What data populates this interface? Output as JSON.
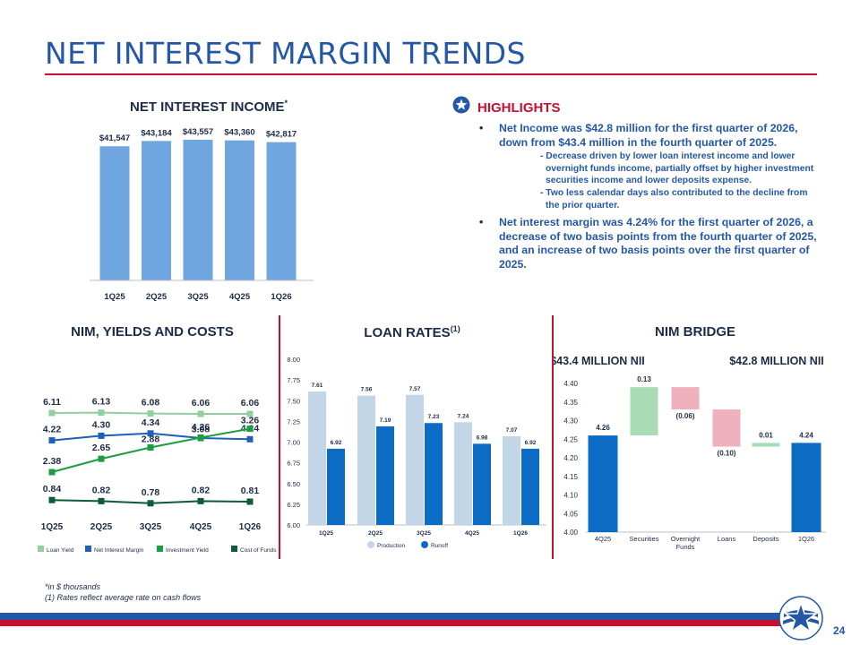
{
  "page": {
    "title": "NET INTEREST MARGIN TRENDS",
    "number": "24"
  },
  "colors": {
    "brand_blue": "#2557a7",
    "brand_red": "#c8102e",
    "light_blue": "#c2d6e8",
    "dark_blue": "#0c6cc4",
    "loan_yield_green": "#8fd19e",
    "nim_blue": "#1f5fb8",
    "investment_green": "#1a9e3f",
    "cost_funds_green": "#0e5a3a"
  },
  "nii_chart": {
    "title": "NET INTEREST INCOME",
    "title_mark": "*",
    "chart_data": {
      "type": "bar",
      "categories": [
        "1Q25",
        "2Q25",
        "3Q25",
        "4Q25",
        "1Q26"
      ],
      "values": [
        41547,
        43184,
        43557,
        43360,
        42817
      ],
      "labels": [
        "$41,547",
        "$43,184",
        "$43,557",
        "$43,360",
        "$42,817"
      ],
      "color": "#6fa6df"
    }
  },
  "highlights": {
    "title": "HIGHLIGHTS",
    "bullet_1": "Net Income was $42.8 million for the first quarter of 2026, down from $43.4 million in the fourth quarter of 2025.",
    "sub_1": "- Decrease driven by lower loan interest income and lower overnight funds income, partially offset by higher investment securities income and lower deposits expense.",
    "sub_2": "- Two less calendar days also contributed to the decline from the prior quarter.",
    "bullet_2": "Net interest margin was 4.24% for the first quarter of 2026, a decrease of two basis points from the fourth quarter of 2025, and an increase of two basis points over the first quarter of 2025."
  },
  "nim_chart": {
    "title": "NIM, YIELDS AND COSTS",
    "chart_data": {
      "type": "line",
      "categories": [
        "1Q25",
        "2Q25",
        "3Q25",
        "4Q25",
        "1Q26"
      ],
      "series": [
        {
          "name": "Loan Yield",
          "values": [
            6.11,
            6.13,
            6.08,
            6.06,
            6.06
          ],
          "labels": [
            "6.11",
            "6.13",
            "6.08",
            "6.06",
            "6.06"
          ],
          "color": "#8fd19e"
        },
        {
          "name": "Net Interest Margin",
          "values": [
            4.22,
            4.3,
            4.34,
            4.26,
            4.24
          ],
          "labels": [
            "4.22",
            "4.30",
            "4.34",
            "4.26",
            "4.24"
          ],
          "color": "#1f5fb8"
        },
        {
          "name": "Investment Yield",
          "values": [
            2.38,
            2.65,
            2.88,
            3.08,
            3.26
          ],
          "labels": [
            "2.38",
            "2.65",
            "2.88",
            "3.08",
            "3.26"
          ],
          "color": "#1a9e3f"
        },
        {
          "name": "Cost of Funds",
          "values": [
            0.84,
            0.82,
            0.78,
            0.82,
            0.81
          ],
          "labels": [
            "0.84",
            "0.82",
            "0.78",
            "0.82",
            "0.81"
          ],
          "color": "#0e5a3a"
        }
      ]
    }
  },
  "loan_chart": {
    "title": "LOAN RATES",
    "title_mark": "(1)",
    "chart_data": {
      "type": "bar",
      "categories": [
        "1Q25",
        "2Q25",
        "3Q25",
        "4Q25",
        "1Q26"
      ],
      "ylim": [
        6.0,
        8.0
      ],
      "yticks": [
        "6.00",
        "6.25",
        "6.50",
        "6.75",
        "7.00",
        "7.25",
        "7.50",
        "7.75",
        "8.00"
      ],
      "series": [
        {
          "name": "Production",
          "values": [
            7.61,
            7.56,
            7.57,
            7.24,
            7.07
          ],
          "labels": [
            "7.61",
            "7.56",
            "7.57",
            "7.24",
            "7.07"
          ],
          "color": "#c2d6e8"
        },
        {
          "name": "Runoff",
          "values": [
            6.92,
            7.19,
            7.23,
            6.98,
            6.92
          ],
          "labels": [
            "6.92",
            "7.19",
            "7.23",
            "6.98",
            "6.92"
          ],
          "color": "#0c6cc4"
        }
      ]
    }
  },
  "bridge_chart": {
    "title": "NIM BRIDGE",
    "left_header": "$43.4 MILLION NII",
    "right_header": "$42.8 MILLION NII",
    "chart_data": {
      "type": "bar",
      "ylim": [
        4.0,
        4.4
      ],
      "yticks": [
        "4.00",
        "4.05",
        "4.10",
        "4.15",
        "4.20",
        "4.25",
        "4.30",
        "4.35",
        "4.40"
      ],
      "steps": [
        {
          "category": "4Q25",
          "value": 4.26,
          "label": "4.26",
          "kind": "total",
          "color": "#0c6cc4"
        },
        {
          "category": "Securities",
          "value": 0.13,
          "label": "0.13",
          "kind": "delta",
          "color": "#a8dcb5"
        },
        {
          "category": "Overnight Funds",
          "value": -0.06,
          "label": "(0.06)",
          "kind": "delta",
          "color": "#eeb1bd"
        },
        {
          "category": "Loans",
          "value": -0.1,
          "label": "(0.10)",
          "kind": "delta",
          "color": "#eeb1bd"
        },
        {
          "category": "Deposits",
          "value": 0.01,
          "label": "0.01",
          "kind": "delta",
          "color": "#a8dcb5"
        },
        {
          "category": "1Q26",
          "value": 4.24,
          "label": "4.24",
          "kind": "total",
          "color": "#0c6cc4"
        }
      ]
    }
  },
  "footnotes": {
    "line_1": "*in $ thousands",
    "line_2": "(1) Rates reflect average rate on cash flows"
  }
}
